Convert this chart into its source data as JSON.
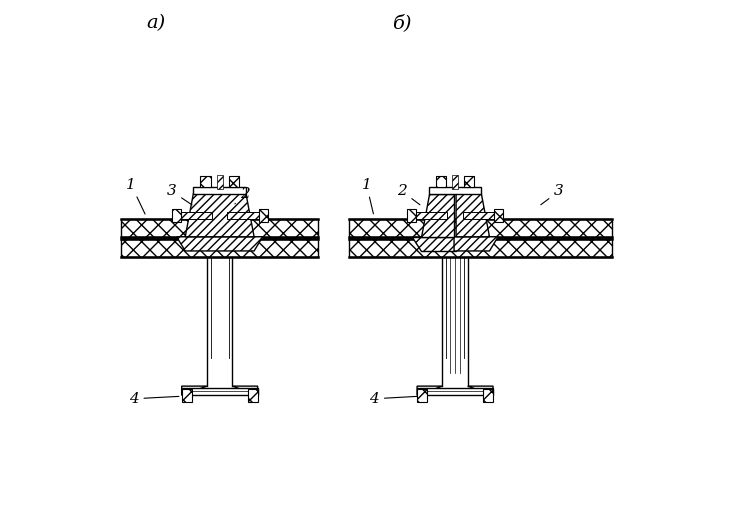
{
  "bg_color": "#ffffff",
  "line_color": "#000000",
  "label_a": "а)",
  "label_b": "б)",
  "figsize": [
    7.38,
    5.09
  ],
  "dpi": 100
}
